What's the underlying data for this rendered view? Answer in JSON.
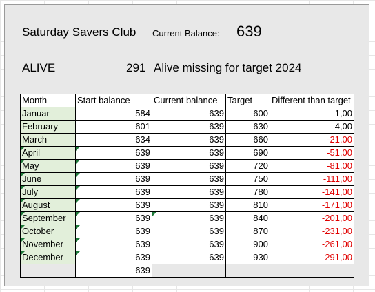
{
  "header": {
    "club_name": "Saturday Savers Club",
    "current_balance_label": "Current Balance:",
    "current_balance_value": "639",
    "status": "ALIVE",
    "missing_amount": "291",
    "missing_text": "Alive missing for target 2024"
  },
  "table": {
    "columns": [
      "Month",
      "Start balance",
      "Current balance",
      "Target",
      "Different than target"
    ],
    "rows": [
      {
        "month": "Januar",
        "start": "584",
        "current": "639",
        "target": "600",
        "diff": "1,00"
      },
      {
        "month": "February",
        "start": "601",
        "current": "639",
        "target": "630",
        "diff": "4,00"
      },
      {
        "month": "March",
        "start": "634",
        "current": "639",
        "target": "660",
        "diff": "-21,00"
      },
      {
        "month": "April",
        "start": "639",
        "current": "639",
        "target": "690",
        "diff": "-51,00"
      },
      {
        "month": "May",
        "start": "639",
        "current": "639",
        "target": "720",
        "diff": "-81,00"
      },
      {
        "month": "June",
        "start": "639",
        "current": "639",
        "target": "750",
        "diff": "-111,00"
      },
      {
        "month": "July",
        "start": "639",
        "current": "639",
        "target": "780",
        "diff": "-141,00"
      },
      {
        "month": "August",
        "start": "639",
        "current": "639",
        "target": "810",
        "diff": "-171,00"
      },
      {
        "month": "September",
        "start": "639",
        "current": "639",
        "target": "840",
        "diff": "-201,00"
      },
      {
        "month": "October",
        "start": "639",
        "current": "639",
        "target": "870",
        "diff": "-231,00"
      },
      {
        "month": "November",
        "start": "639",
        "current": "639",
        "target": "900",
        "diff": "-261,00"
      },
      {
        "month": "December",
        "start": "639",
        "current": "639",
        "target": "930",
        "diff": "-291,00"
      }
    ],
    "footer_start_total": "639"
  },
  "colors": {
    "negative": "#e00000",
    "month_fill": "#e2efda",
    "panel_background": "#e8e8e8",
    "error_indicator": "#1f7a3a"
  }
}
